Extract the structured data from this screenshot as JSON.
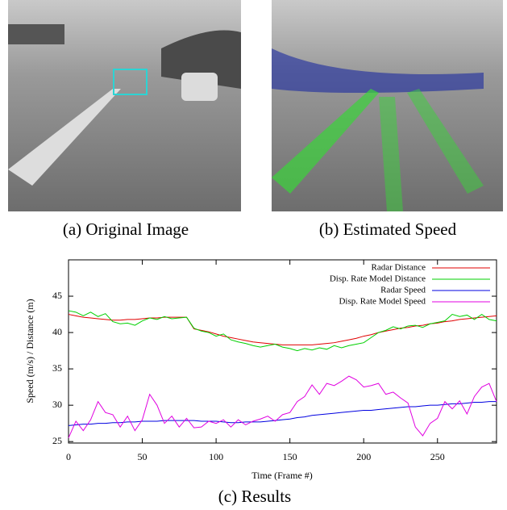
{
  "panels": [
    {
      "caption": "(a) Original Image"
    },
    {
      "caption": "(b) Estimated Speed"
    }
  ],
  "chart_data": {
    "type": "line",
    "caption": "(c) Results",
    "xlabel": "Time (Frame #)",
    "ylabel": "Speed (m/s)  / Distance (m)",
    "xlim": [
      0,
      290
    ],
    "xticks": [
      0,
      50,
      100,
      150,
      200,
      250
    ],
    "ylim": [
      24.8,
      50
    ],
    "yticks": [
      25,
      30,
      35,
      40,
      45
    ],
    "legend": "top-right",
    "x": [
      0,
      5,
      10,
      15,
      20,
      25,
      30,
      35,
      40,
      45,
      50,
      55,
      60,
      65,
      70,
      75,
      80,
      85,
      90,
      95,
      100,
      105,
      110,
      115,
      120,
      125,
      130,
      135,
      140,
      145,
      150,
      155,
      160,
      165,
      170,
      175,
      180,
      185,
      190,
      195,
      200,
      205,
      210,
      215,
      220,
      225,
      230,
      235,
      240,
      245,
      250,
      255,
      260,
      265,
      270,
      275,
      280,
      285,
      290
    ],
    "series": [
      {
        "name": "Radar Distance",
        "color": "#e00000",
        "values": [
          42.5,
          42.3,
          42.1,
          42.0,
          41.9,
          41.8,
          41.7,
          41.7,
          41.8,
          41.8,
          41.9,
          42,
          42,
          42.1,
          42.1,
          42.1,
          42.1,
          40.5,
          40.3,
          40.1,
          39.8,
          39.5,
          39.3,
          39.1,
          38.9,
          38.7,
          38.6,
          38.5,
          38.4,
          38.3,
          38.3,
          38.3,
          38.3,
          38.3,
          38.4,
          38.5,
          38.6,
          38.8,
          39,
          39.2,
          39.5,
          39.7,
          40,
          40.2,
          40.4,
          40.6,
          40.7,
          40.9,
          41,
          41.2,
          41.3,
          41.5,
          41.6,
          41.8,
          41.9,
          42,
          42.1,
          42.2,
          42.3
        ]
      },
      {
        "name": "Disp. Rate Model Distance",
        "color": "#00d000",
        "values": [
          43,
          42.8,
          42.3,
          42.8,
          42.2,
          42.6,
          41.5,
          41.2,
          41.3,
          41,
          41.6,
          42,
          41.8,
          42.2,
          41.9,
          42,
          42.1,
          40.6,
          40.2,
          40,
          39.5,
          39.8,
          39,
          38.7,
          38.5,
          38.2,
          38,
          38.2,
          38.4,
          38,
          37.8,
          37.5,
          37.8,
          37.6,
          37.9,
          37.7,
          38.2,
          37.9,
          38.2,
          38.4,
          38.6,
          39.3,
          40,
          40.3,
          40.8,
          40.5,
          40.9,
          41,
          40.7,
          41.2,
          41.4,
          41.6,
          42.5,
          42.2,
          42.4,
          41.8,
          42.5,
          41.8,
          41.6
        ]
      },
      {
        "name": "Radar Speed",
        "color": "#0000e0",
        "values": [
          27.2,
          27.3,
          27.4,
          27.4,
          27.5,
          27.5,
          27.6,
          27.6,
          27.7,
          27.7,
          27.8,
          27.8,
          27.8,
          27.9,
          27.9,
          27.9,
          27.9,
          27.9,
          27.8,
          27.8,
          27.8,
          27.7,
          27.6,
          27.6,
          27.7,
          27.7,
          27.7,
          27.8,
          27.9,
          28,
          28.1,
          28.3,
          28.4,
          28.6,
          28.7,
          28.8,
          28.9,
          29,
          29.1,
          29.2,
          29.3,
          29.3,
          29.4,
          29.5,
          29.6,
          29.7,
          29.8,
          29.8,
          29.9,
          30,
          30,
          30.1,
          30.2,
          30.2,
          30.3,
          30.4,
          30.4,
          30.5,
          30.5
        ]
      },
      {
        "name": "Disp. Rate Model Speed",
        "color": "#e000e0",
        "values": [
          25.5,
          27.8,
          26.5,
          28,
          30.5,
          29,
          28.7,
          27,
          28.5,
          26.5,
          28,
          31.5,
          30,
          27.5,
          28.5,
          27,
          28.2,
          26.9,
          27,
          27.8,
          27.5,
          28,
          27,
          28,
          27.3,
          27.8,
          28.1,
          28.5,
          27.8,
          28.7,
          29,
          30.5,
          31.2,
          32.8,
          31.5,
          33,
          32.7,
          33.3,
          34,
          33.5,
          32.5,
          32.7,
          33,
          31.5,
          31.8,
          31,
          30.3,
          27,
          25.8,
          27.5,
          28.2,
          30.5,
          29.5,
          30.6,
          28.8,
          31.2,
          32.5,
          33,
          30.5
        ]
      }
    ]
  }
}
